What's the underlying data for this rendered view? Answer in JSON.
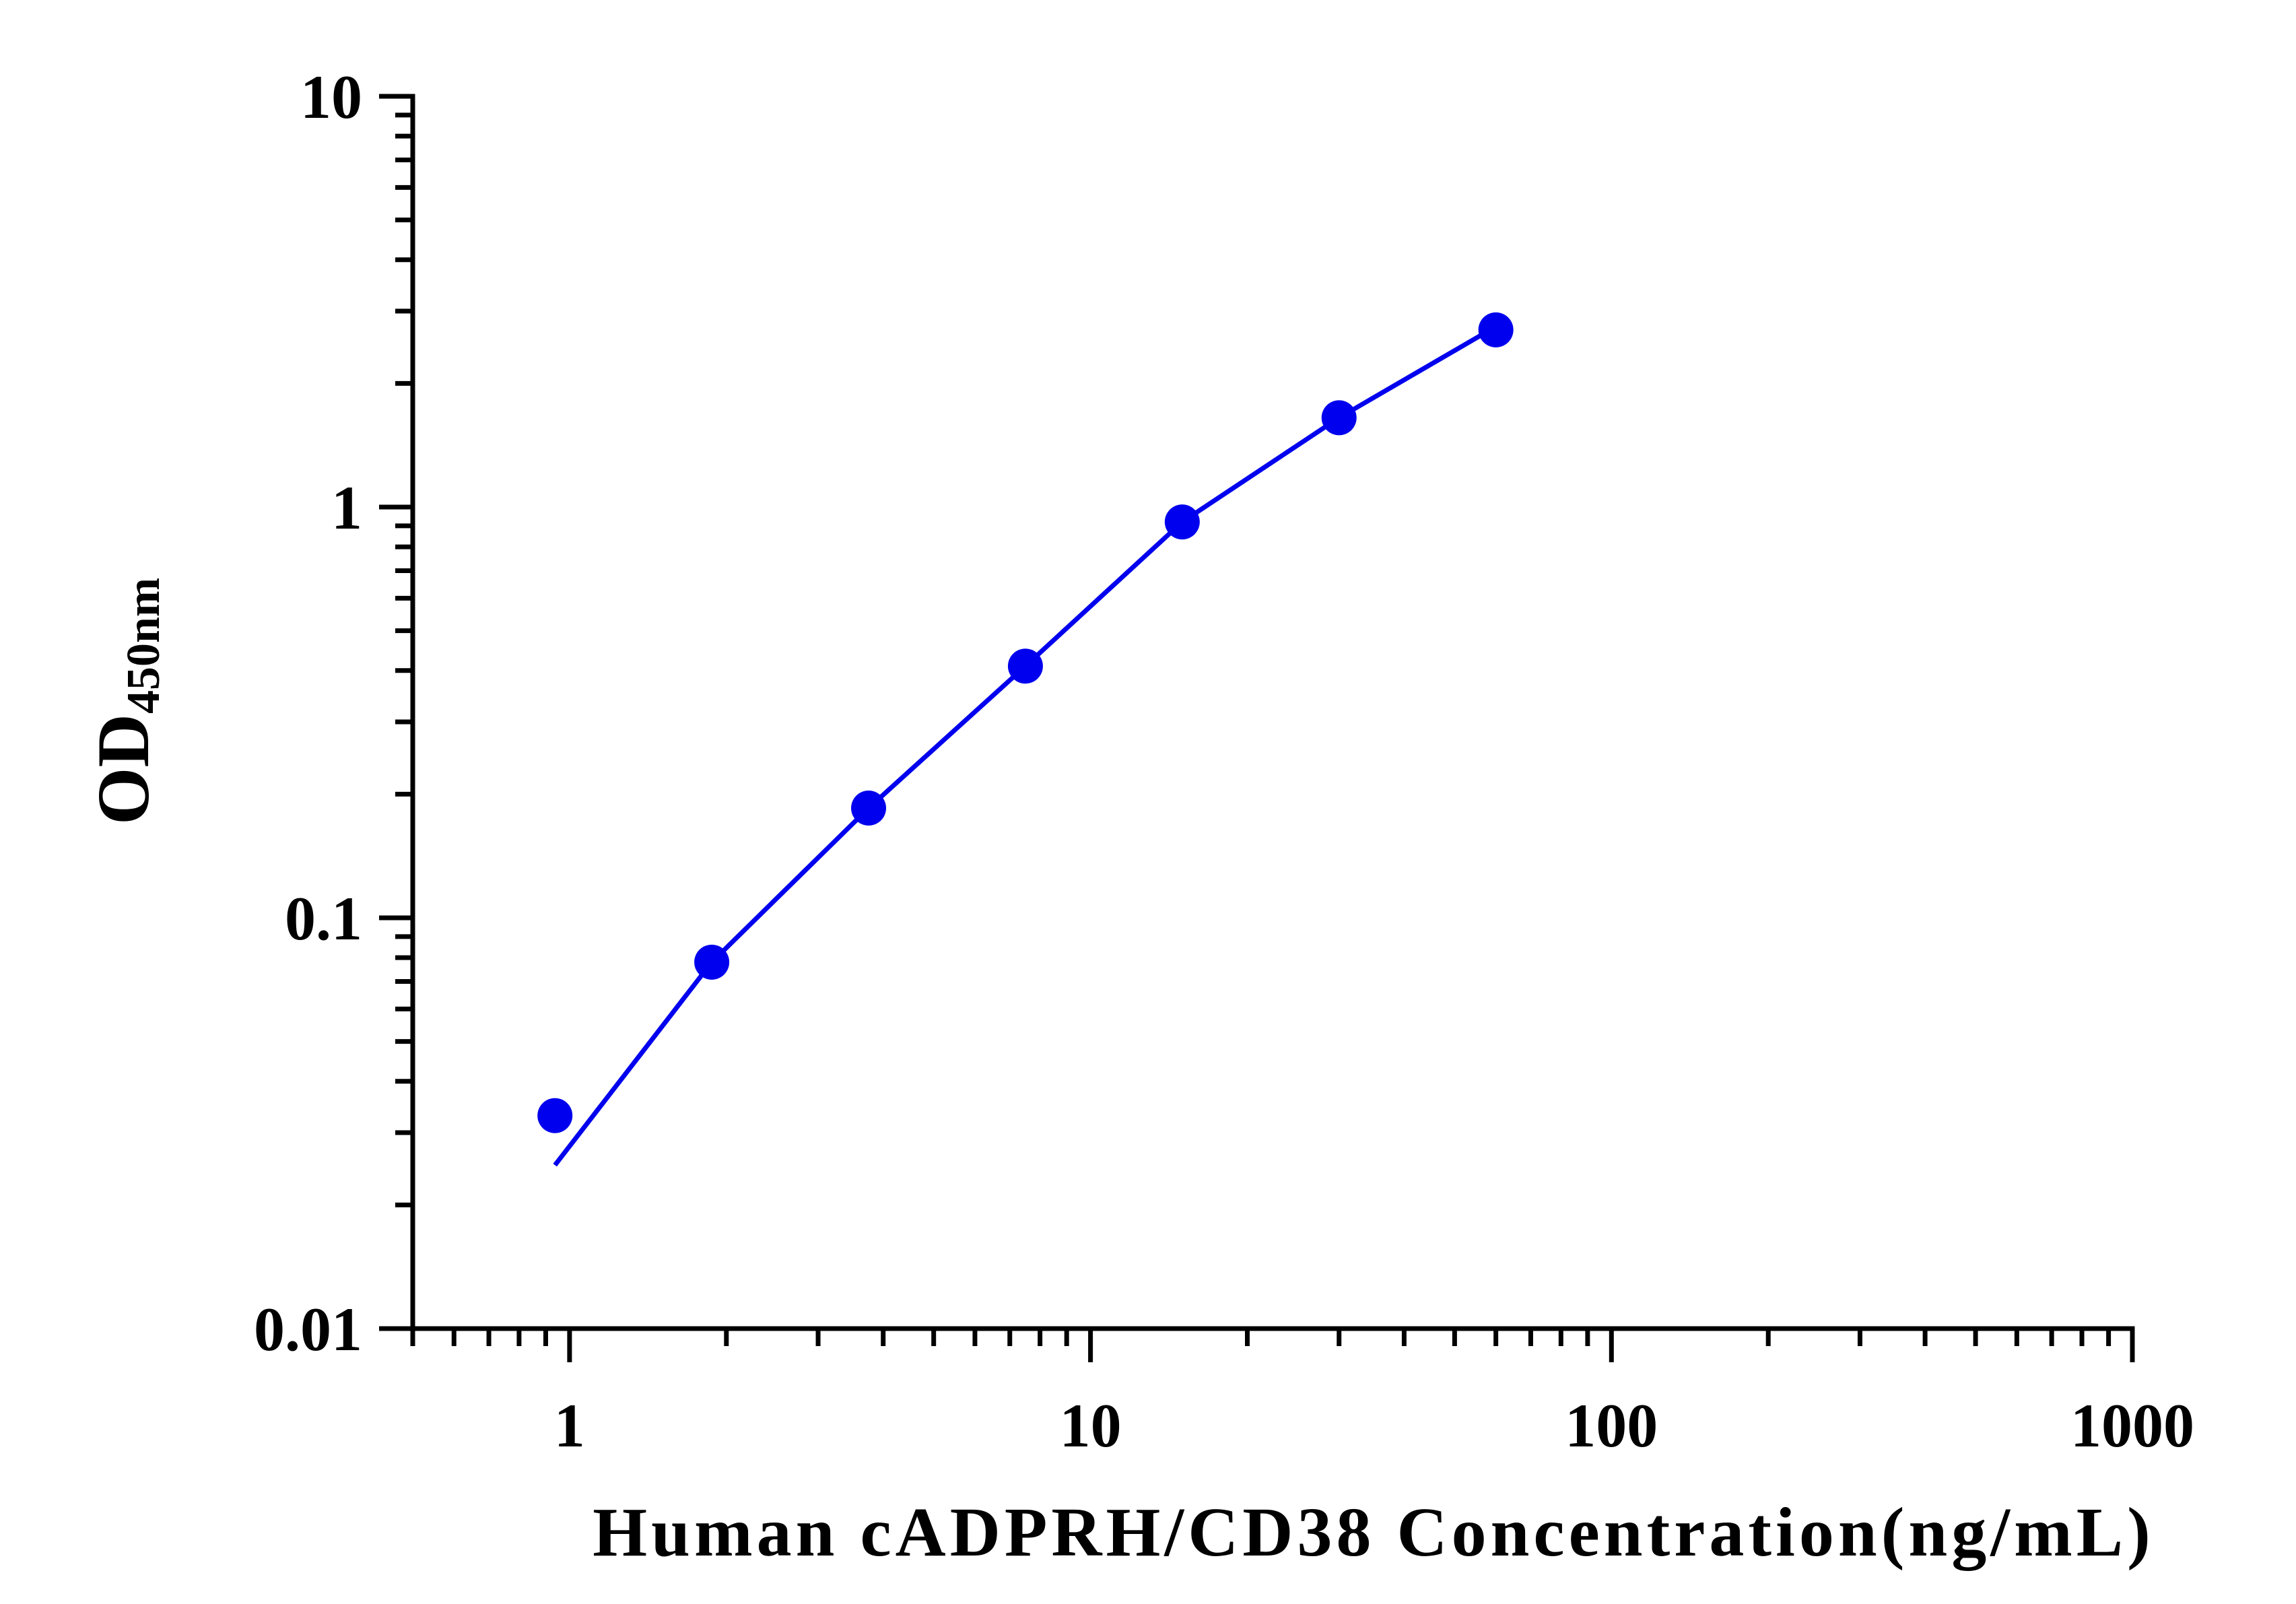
{
  "chart_data": {
    "type": "scatter",
    "xlabel": "Human cADPRH/CD38 Concentration(ng/mL)",
    "ylabel": "OD",
    "ylabel_subscript": "450nm",
    "xscale": "log",
    "yscale": "log",
    "xlim": [
      0.5,
      1000
    ],
    "ylim": [
      0.01,
      10
    ],
    "xticks": [
      1,
      10,
      100,
      1000
    ],
    "yticks": [
      0.01,
      0.1,
      1,
      10
    ],
    "x": [
      0.9375,
      1.875,
      3.75,
      7.5,
      15,
      30,
      60
    ],
    "series": [
      {
        "type": "scatter",
        "color": "#0000ee",
        "values": [
          0.033,
          0.078,
          0.185,
          0.41,
          0.92,
          1.65,
          2.7
        ]
      },
      {
        "type": "line",
        "color": "#0000ee",
        "values": [
          0.025,
          0.078,
          0.185,
          0.41,
          0.92,
          1.65,
          2.75
        ]
      }
    ]
  }
}
